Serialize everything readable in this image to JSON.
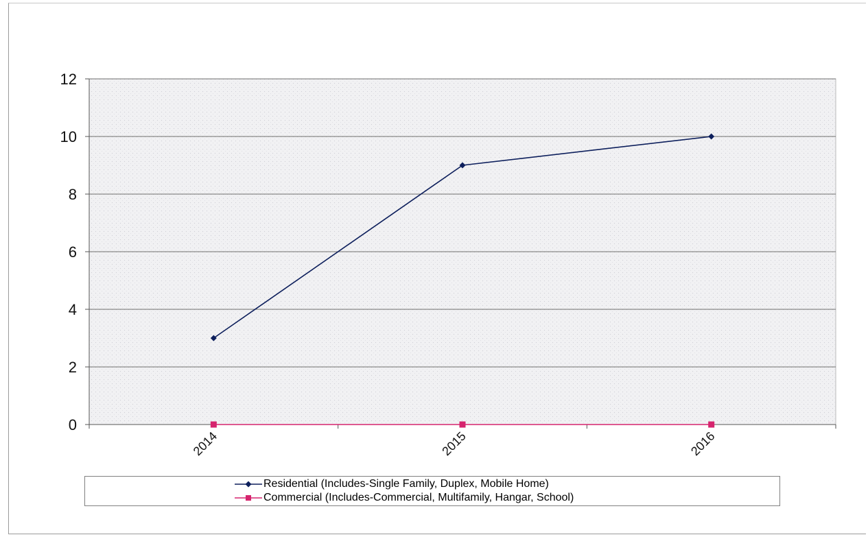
{
  "chart_data": {
    "type": "line",
    "title": "",
    "xlabel": "",
    "ylabel": "",
    "categories": [
      "2014",
      "2015",
      "2016"
    ],
    "ylim": [
      0,
      12
    ],
    "yticks": [
      0,
      2,
      4,
      6,
      8,
      10,
      12
    ],
    "grid": true,
    "legend_position": "bottom",
    "series": [
      {
        "name": "Residential (Includes-Single Family, Duplex, Mobile Home)",
        "values": [
          3,
          9,
          10
        ],
        "color": "#0d1f5c",
        "marker": "diamond"
      },
      {
        "name": "Commercial (Includes-Commercial, Multifamily, Hangar, School)",
        "values": [
          0,
          0,
          0
        ],
        "color": "#d6246e",
        "marker": "square"
      }
    ]
  }
}
